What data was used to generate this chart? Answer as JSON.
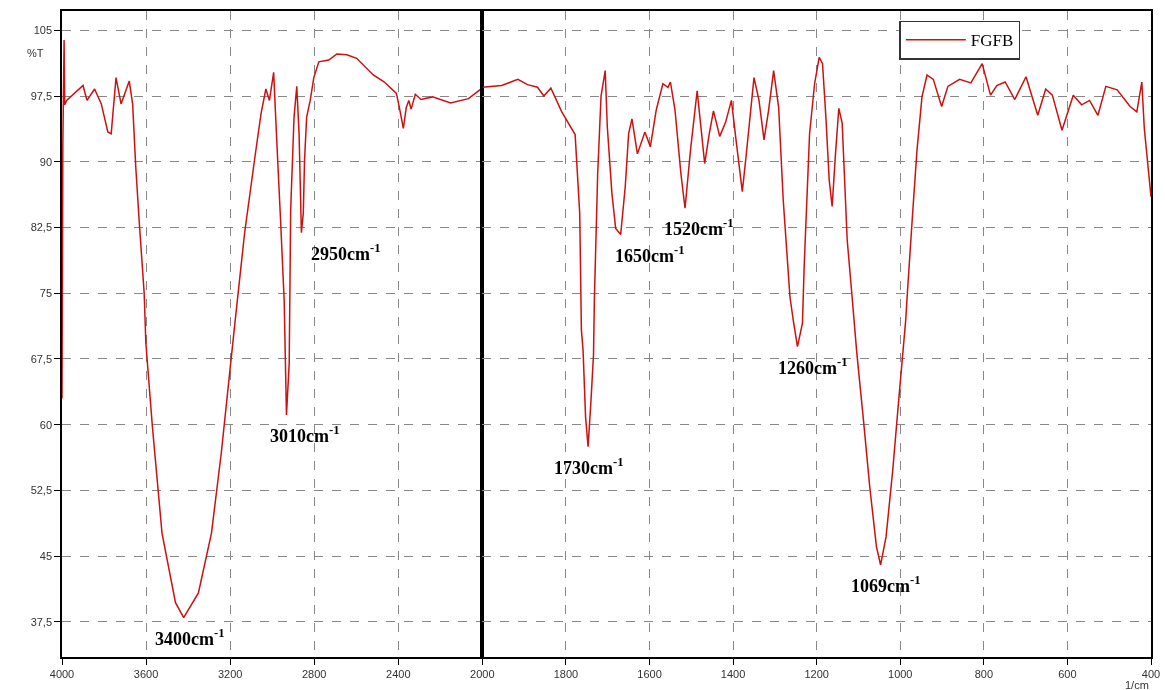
{
  "chart_data": [
    {
      "type": "line",
      "ylabel": "%T",
      "xlim": [
        4000,
        2000
      ],
      "xticks": [
        4000,
        3600,
        3200,
        2800,
        2400,
        2000
      ],
      "ylim": [
        33.5,
        107.2
      ],
      "yticks": [
        105,
        {
          "value": 97.5,
          "label": "97,5"
        },
        90,
        {
          "value": 82.5,
          "label": "82,5"
        },
        75,
        {
          "value": 67.5,
          "label": "67,5"
        },
        60,
        {
          "value": 52.5,
          "label": "52,5"
        },
        45,
        {
          "value": 37.5,
          "label": "37,5"
        }
      ],
      "grid": true,
      "legend": false,
      "line_style": "solid",
      "series": [
        {
          "color": "#cc1111",
          "x": [
            4000,
            3996,
            3990,
            3987,
            3978,
            3900,
            3881,
            3845,
            3813,
            3782,
            3766,
            3743,
            3719,
            3680,
            3664,
            3649,
            3633,
            3609,
            3601,
            3570,
            3524,
            3460,
            3421,
            3351,
            3289,
            3242,
            3201,
            3176,
            3131,
            3084,
            3053,
            3030,
            3013,
            2993,
            2979,
            2960,
            2943,
            2932,
            2919,
            2912,
            2896,
            2883,
            2872,
            2861,
            2852,
            2846,
            2836,
            2819,
            2802,
            2778,
            2731,
            2692,
            2645,
            2598,
            2519,
            2466,
            2409,
            2395,
            2376,
            2362,
            2350,
            2339,
            2319,
            2292,
            2237,
            2151,
            2066,
            2001
          ],
          "values": [
            63,
            92,
            103.9,
            96.5,
            97.0,
            98.7,
            97.0,
            98.3,
            96.6,
            93.4,
            93.2,
            99.6,
            96.6,
            99.2,
            96.6,
            89.4,
            83.3,
            75.0,
            69.3,
            59.8,
            47.6,
            39.7,
            38.0,
            40.8,
            47.6,
            56.8,
            66.2,
            71.9,
            81.9,
            90.2,
            95.5,
            98.3,
            97.0,
            100.2,
            92.8,
            83.3,
            74.2,
            61.1,
            67.0,
            84.5,
            95.1,
            98.6,
            93.2,
            81.9,
            84.1,
            90.2,
            95.1,
            97.0,
            99.6,
            101.4,
            101.6,
            102.3,
            102.2,
            101.8,
            99.9,
            99.1,
            97.8,
            96.2,
            93.8,
            96.2,
            97.0,
            96.0,
            97.7,
            97.1,
            97.4,
            96.7,
            97.2,
            98.4
          ]
        }
      ],
      "annotations": [
        {
          "text": "3400cm$^{-1}$",
          "x": 3421,
          "y": 38.0
        },
        {
          "text": "3010cm$^{-1}$",
          "x": 2932,
          "y": 61.1
        },
        {
          "text": "2950cm$^{-1}$",
          "x": 2861,
          "y": 81.9
        }
      ]
    },
    {
      "type": "line",
      "xlabel": "1/cm",
      "xlim": [
        2000,
        400
      ],
      "xticks": [
        1800,
        1600,
        1400,
        1200,
        1000,
        800,
        600,
        400
      ],
      "ylim": [
        33.5,
        107.2
      ],
      "yticks": [
        105,
        97.5,
        90,
        82.5,
        75,
        67.5,
        60,
        52.5,
        45,
        37.5
      ],
      "tick_labels": "x",
      "grid": true,
      "legend": "top right",
      "line_style": "solid",
      "series": [
        {
          "name": "FGFB",
          "color": "#cc1111",
          "x": [
            2000,
            1954,
            1915,
            1892,
            1868,
            1853,
            1836,
            1810,
            1778,
            1767,
            1763,
            1759,
            1753,
            1747,
            1740,
            1734,
            1732,
            1724,
            1716,
            1706,
            1701,
            1690,
            1681,
            1669,
            1658,
            1650,
            1642,
            1629,
            1611,
            1598,
            1584,
            1568,
            1556,
            1550,
            1539,
            1525,
            1515,
            1502,
            1486,
            1478,
            1468,
            1457,
            1447,
            1432,
            1418,
            1404,
            1393,
            1378,
            1369,
            1350,
            1338,
            1326,
            1315,
            1303,
            1291,
            1280,
            1264,
            1256,
            1246,
            1234,
            1230,
            1217,
            1205,
            1194,
            1186,
            1178,
            1170,
            1163,
            1155,
            1147,
            1139,
            1127,
            1116,
            1104,
            1088,
            1073,
            1057,
            1047,
            1034,
            1018,
            1003,
            987,
            983,
            971,
            960,
            948,
            936,
            921,
            901,
            886,
            858,
            831,
            804,
            784,
            769,
            749,
            726,
            699,
            671,
            652,
            636,
            613,
            586,
            566,
            547,
            527,
            508,
            481,
            450,
            434,
            430,
            422,
            416,
            400
          ],
          "values": [
            98.5,
            98.7,
            99.4,
            98.8,
            98.5,
            97.5,
            98.4,
            95.7,
            93.1,
            84.1,
            70.8,
            68.5,
            60.9,
            57.5,
            62.8,
            68.0,
            74.2,
            88.7,
            97.5,
            100.4,
            94.0,
            86.4,
            82.4,
            81.7,
            87.2,
            93.2,
            94.9,
            90.9,
            93.4,
            91.7,
            95.9,
            98.9,
            98.5,
            99.1,
            95.9,
            88.7,
            84.7,
            91.3,
            98.1,
            94.4,
            89.8,
            93.2,
            95.8,
            92.9,
            94.5,
            97.0,
            92.5,
            86.6,
            90.6,
            99.6,
            97.0,
            92.5,
            95.9,
            100.4,
            96.2,
            85.6,
            74.6,
            71.9,
            68.9,
            71.6,
            78.0,
            93.2,
            98.9,
            101.9,
            101.2,
            95.1,
            87.9,
            84.9,
            90.9,
            96.1,
            94.4,
            81.1,
            75.0,
            68.2,
            60.5,
            52.9,
            46.1,
            44.0,
            47.2,
            54.8,
            63.2,
            71.9,
            75.0,
            83.7,
            91.3,
            97.4,
            99.9,
            99.4,
            96.3,
            98.6,
            99.4,
            99.0,
            101.2,
            97.6,
            98.7,
            99.1,
            97.1,
            99.7,
            95.3,
            98.3,
            97.6,
            93.6,
            97.6,
            96.5,
            97.0,
            95.3,
            98.6,
            98.2,
            96.3,
            95.7,
            96.8,
            99.1,
            93.8,
            86.0
          ]
        }
      ],
      "annotations": [
        {
          "text": "1730cm$^{-1}$",
          "x": 1747,
          "y": 57.5
        },
        {
          "text": "1650cm$^{-1}$",
          "x": 1669,
          "y": 81.7
        },
        {
          "text": "1520cm$^{-1}$",
          "x": 1515,
          "y": 84.7
        },
        {
          "text": "1260cm$^{-1}$",
          "x": 1246,
          "y": 68.9
        },
        {
          "text": "1069cm$^{-1}$",
          "x": 1047,
          "y": 44.0
        }
      ]
    }
  ]
}
